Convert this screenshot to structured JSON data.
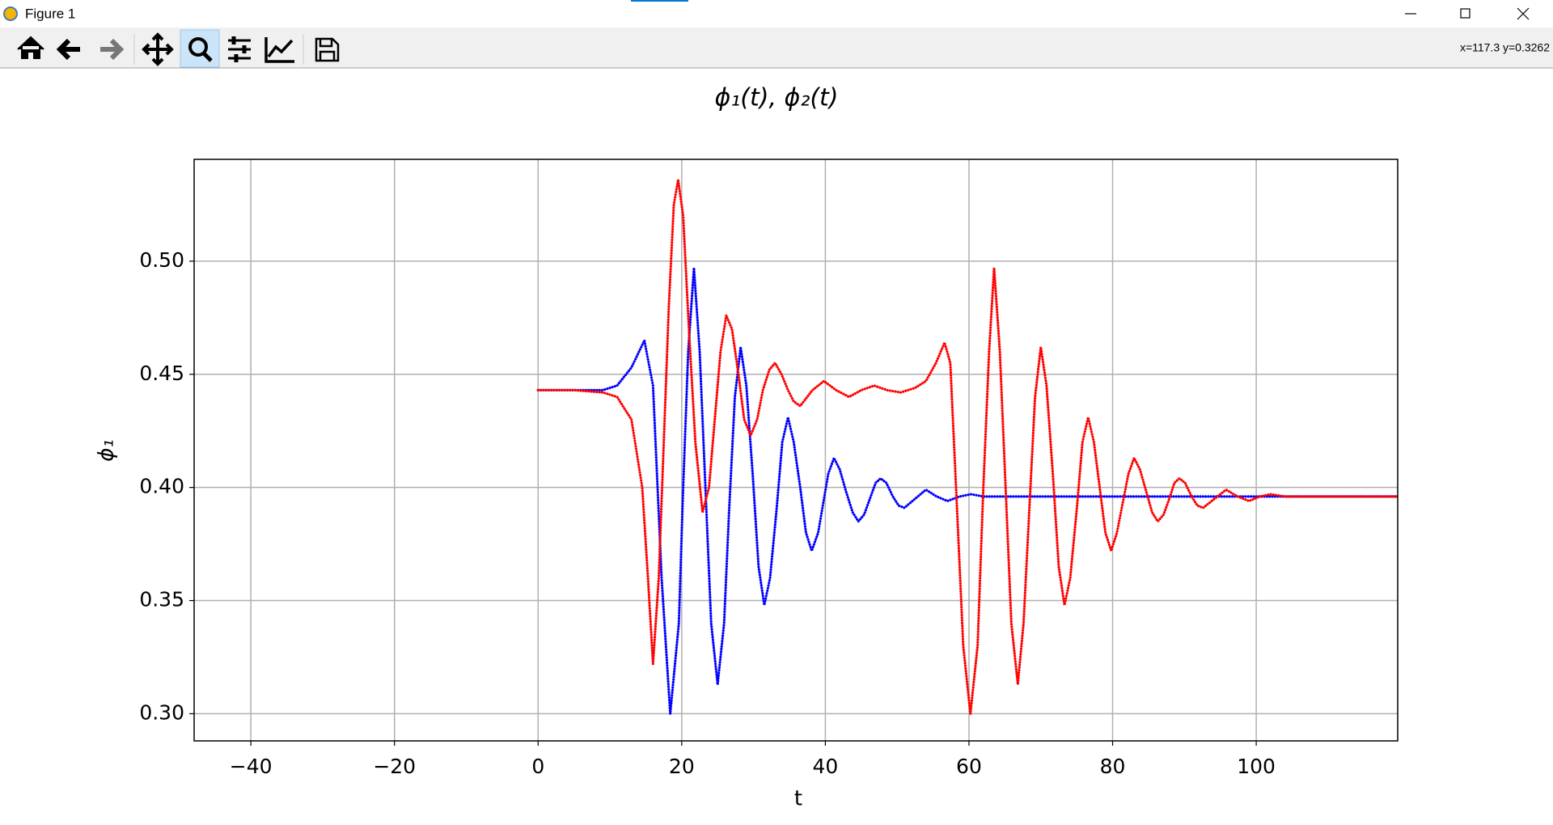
{
  "window": {
    "title": "Figure 1",
    "coords": "x=117.3 y=0.3262"
  },
  "chart_data": {
    "type": "line",
    "title": "ϕ₁(t), ϕ₂(t)",
    "x_label": "t",
    "y_label": "ϕ₁",
    "xlim": [
      -47.9,
      119.7
    ],
    "ylim": [
      0.288,
      0.545
    ],
    "grid": true,
    "xticks": [
      {
        "value": -40,
        "label": "−40"
      },
      {
        "value": -20,
        "label": "−20"
      },
      0,
      20,
      40,
      60,
      80,
      100
    ],
    "yticks": [
      {
        "value": 0.3,
        "label": "0.30"
      },
      {
        "value": 0.35,
        "label": "0.35"
      },
      {
        "value": 0.4,
        "label": "0.40"
      },
      {
        "value": 0.45,
        "label": "0.45"
      },
      {
        "value": 0.5,
        "label": "0.50"
      }
    ],
    "series": [
      {
        "color": "#0000ff",
        "x": [
          0,
          5,
          9,
          11,
          13,
          14.8,
          16,
          17.2,
          18.4,
          19.6,
          20.2,
          20.9,
          21.7,
          22.5,
          23.3,
          24.1,
          25,
          25.9,
          26.6,
          27.4,
          28.2,
          29,
          29.9,
          30.7,
          31.5,
          32.3,
          33.2,
          34,
          34.8,
          35.6,
          36.5,
          37.3,
          38.1,
          39,
          39.7,
          40.4,
          41.2,
          42,
          42.9,
          43.8,
          44.6,
          45.4,
          46.2,
          47,
          47.7,
          48.5,
          49.4,
          50.2,
          51,
          52.5,
          54,
          55.5,
          57,
          58.7,
          60.3,
          62,
          65,
          70,
          80,
          90,
          100,
          110,
          120
        ],
        "values": [
          0.443,
          0.443,
          0.443,
          0.445,
          0.453,
          0.465,
          0.445,
          0.36,
          0.3,
          0.34,
          0.4,
          0.46,
          0.497,
          0.46,
          0.4,
          0.34,
          0.313,
          0.34,
          0.39,
          0.44,
          0.462,
          0.445,
          0.405,
          0.365,
          0.348,
          0.36,
          0.39,
          0.42,
          0.431,
          0.42,
          0.4,
          0.38,
          0.372,
          0.38,
          0.393,
          0.406,
          0.413,
          0.408,
          0.398,
          0.389,
          0.385,
          0.388,
          0.395,
          0.402,
          0.404,
          0.402,
          0.396,
          0.392,
          0.391,
          0.395,
          0.399,
          0.396,
          0.394,
          0.396,
          0.397,
          0.396,
          0.396,
          0.396,
          0.396,
          0.396,
          0.396,
          0.396,
          0.396
        ]
      },
      {
        "color": "#ff0000",
        "x": [
          0,
          5,
          9,
          11,
          13,
          14.5,
          15.3,
          16,
          16.8,
          17.5,
          18.2,
          18.9,
          19.5,
          20.2,
          21,
          21.9,
          22.9,
          23.8,
          24.6,
          25.4,
          26.2,
          27,
          27.9,
          28.7,
          29.6,
          30.5,
          31.3,
          32.2,
          33,
          33.9,
          34.8,
          35.6,
          36.5,
          38.2,
          39.8,
          41.5,
          43.3,
          45,
          46.8,
          48.6,
          50.5,
          52.5,
          54,
          55.4,
          56.6,
          57.4,
          58.2,
          59.2,
          60.2,
          61.2,
          62,
          62.8,
          63.5,
          64.3,
          65.1,
          65.9,
          66.8,
          67.6,
          68.4,
          69.2,
          70,
          70.8,
          71.7,
          72.5,
          73.3,
          74.1,
          75,
          75.8,
          76.6,
          77.4,
          78.2,
          79,
          79.8,
          80.6,
          81.4,
          82.2,
          83,
          83.8,
          84.7,
          85.5,
          86.3,
          87.1,
          87.9,
          88.6,
          89.3,
          90.1,
          91,
          91.8,
          92.6,
          94.2,
          95.8,
          97.4,
          99,
          100.5,
          102,
          104,
          110,
          120
        ],
        "values": [
          0.443,
          0.443,
          0.442,
          0.44,
          0.43,
          0.4,
          0.36,
          0.322,
          0.36,
          0.42,
          0.48,
          0.525,
          0.536,
          0.52,
          0.47,
          0.42,
          0.389,
          0.4,
          0.43,
          0.46,
          0.476,
          0.47,
          0.45,
          0.43,
          0.423,
          0.43,
          0.443,
          0.452,
          0.455,
          0.45,
          0.443,
          0.438,
          0.436,
          0.443,
          0.447,
          0.443,
          0.44,
          0.443,
          0.445,
          0.443,
          0.442,
          0.444,
          0.447,
          0.455,
          0.464,
          0.455,
          0.4,
          0.33,
          0.3,
          0.33,
          0.4,
          0.46,
          0.497,
          0.46,
          0.4,
          0.34,
          0.313,
          0.34,
          0.39,
          0.44,
          0.462,
          0.445,
          0.405,
          0.365,
          0.348,
          0.36,
          0.39,
          0.42,
          0.431,
          0.42,
          0.4,
          0.38,
          0.372,
          0.38,
          0.393,
          0.406,
          0.413,
          0.408,
          0.398,
          0.389,
          0.385,
          0.388,
          0.395,
          0.402,
          0.404,
          0.402,
          0.396,
          0.392,
          0.391,
          0.395,
          0.399,
          0.396,
          0.394,
          0.396,
          0.397,
          0.396,
          0.396,
          0.396
        ]
      }
    ]
  }
}
